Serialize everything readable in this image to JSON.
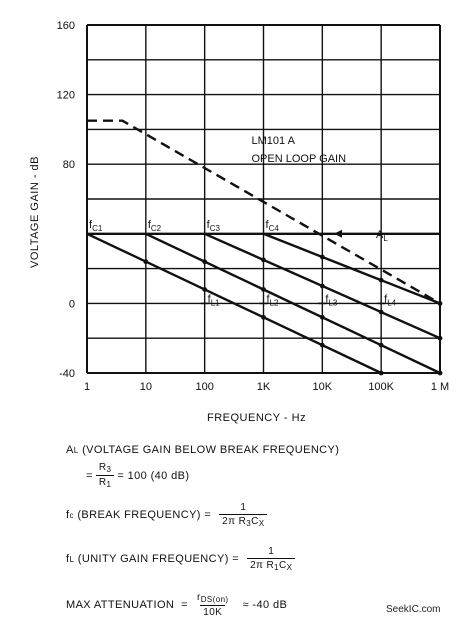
{
  "chart_data": {
    "type": "line",
    "xlabel": "FREQUENCY - Hz",
    "ylabel": "VOLTAGE GAIN - dB",
    "xscale": "log",
    "x_ticks": [
      {
        "value": 1,
        "label": "1"
      },
      {
        "value": 10,
        "label": "10"
      },
      {
        "value": 100,
        "label": "100"
      },
      {
        "value": 1000,
        "label": "1K"
      },
      {
        "value": 10000,
        "label": "10K"
      },
      {
        "value": 100000,
        "label": "100K"
      },
      {
        "value": 1000000,
        "label": "1 M"
      }
    ],
    "y_ticks": [
      {
        "value": 160,
        "label": "160"
      },
      {
        "value": 120,
        "label": "120"
      },
      {
        "value": 80,
        "label": "80"
      },
      {
        "value": 0,
        "label": "0"
      },
      {
        "value": -40,
        "label": "-40"
      }
    ],
    "grid_y": [
      160,
      140,
      120,
      100,
      80,
      60,
      40,
      20,
      0,
      -20,
      -40
    ],
    "xlim": [
      1,
      1000000
    ],
    "ylim": [
      -40,
      160
    ],
    "grid": true,
    "series": [
      {
        "name": "LM101A OPEN LOOP GAIN",
        "style": "dashed",
        "x": [
          1,
          4,
          1000000
        ],
        "y": [
          105,
          105,
          0
        ]
      },
      {
        "name": "A_L",
        "style": "solid",
        "x": [
          1,
          1000000
        ],
        "y": [
          40,
          40
        ]
      },
      {
        "name": "f_C1",
        "style": "solid",
        "x": [
          1,
          100000
        ],
        "y": [
          40,
          -40
        ]
      },
      {
        "name": "f_C2",
        "style": "solid",
        "x": [
          10,
          1000000
        ],
        "y": [
          40,
          -40
        ]
      },
      {
        "name": "f_C3",
        "style": "solid",
        "x": [
          100,
          1000000
        ],
        "y": [
          40,
          -20
        ]
      },
      {
        "name": "f_C4",
        "style": "solid",
        "x": [
          1000,
          1000000
        ],
        "y": [
          40,
          0
        ]
      }
    ],
    "labels": {
      "open_loop_line1": "LM101 A",
      "open_loop_line2": "OPEN LOOP GAIN",
      "al_main": "A",
      "al_sub": "L",
      "fc": [
        {
          "main": "f",
          "sub": "C1",
          "x": 1
        },
        {
          "main": "f",
          "sub": "C2",
          "x": 10
        },
        {
          "main": "f",
          "sub": "C3",
          "x": 100
        },
        {
          "main": "f",
          "sub": "C4",
          "x": 1000
        }
      ],
      "fl": [
        {
          "main": "f",
          "sub": "L1",
          "x": 100
        },
        {
          "main": "f",
          "sub": "L2",
          "x": 1000
        },
        {
          "main": "f",
          "sub": "L3",
          "x": 10000
        },
        {
          "main": "f",
          "sub": "L4",
          "x": 100000
        }
      ]
    }
  },
  "formulas": {
    "al_prefix": "A",
    "al_prefix_sub": "L",
    "al_text": " (VOLTAGE GAIN BELOW BREAK FREQUENCY)",
    "al_eq_prefix": "=",
    "al_num": "R",
    "al_num_sub": "3",
    "al_den": "R",
    "al_den_sub": "1",
    "al_value": "= 100 (40 dB)",
    "fc_prefix": "f",
    "fc_prefix_sub": "c",
    "fc_text": " (BREAK FREQUENCY) =",
    "fc_num": "1",
    "fc_den": "2π R",
    "fc_den_sub1": "3",
    "fc_den_mid": "C",
    "fc_den_sub2": "X",
    "fl_prefix": "f",
    "fl_prefix_sub": "L",
    "fl_text": " (UNITY GAIN FREQUENCY) =",
    "fl_num": "1",
    "fl_den": "2π R",
    "fl_den_sub1": "1",
    "fl_den_mid": "C",
    "fl_den_sub2": "X",
    "ma_text": "MAX ATTENUATION  =",
    "ma_num": "r",
    "ma_num_sub": "DS(on)",
    "ma_den": "10K",
    "ma_value": "≈  -40 dB"
  },
  "watermark": "SeekIC.com"
}
